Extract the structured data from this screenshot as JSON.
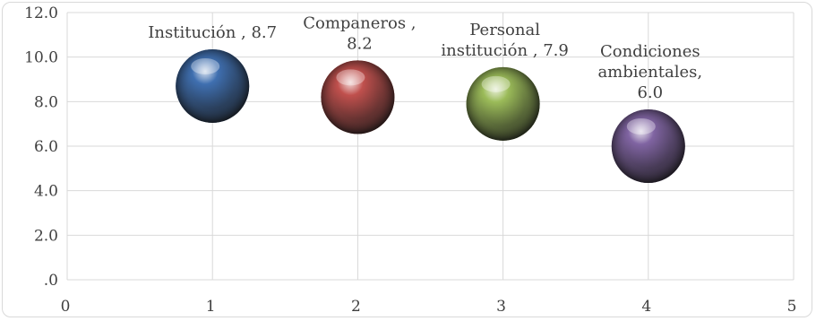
{
  "chart_data": {
    "type": "scatter",
    "variant": "bubble-3d",
    "x_ticks": [
      "0",
      "1",
      "2",
      "3",
      "4",
      "5"
    ],
    "y_ticks": [
      ".0",
      "2.0",
      "4.0",
      "6.0",
      "8.0",
      "10.0",
      "12.0"
    ],
    "xlim": [
      0,
      5
    ],
    "ylim": [
      0,
      12
    ],
    "grid": true,
    "points": [
      {
        "x": 1,
        "y": 8.7,
        "label": [
          "Institución  , 8.7"
        ],
        "color": "#3f6fb0"
      },
      {
        "x": 2,
        "y": 8.2,
        "label": [
          "Companeros  ,",
          "8.2"
        ],
        "color": "#c0504d"
      },
      {
        "x": 3,
        "y": 7.9,
        "label": [
          "Personal",
          "institución  , 7.9"
        ],
        "color": "#9bbb59"
      },
      {
        "x": 4,
        "y": 6.0,
        "label": [
          "Condiciones",
          "ambientales,",
          "6.0"
        ],
        "color": "#8064a2"
      }
    ]
  }
}
